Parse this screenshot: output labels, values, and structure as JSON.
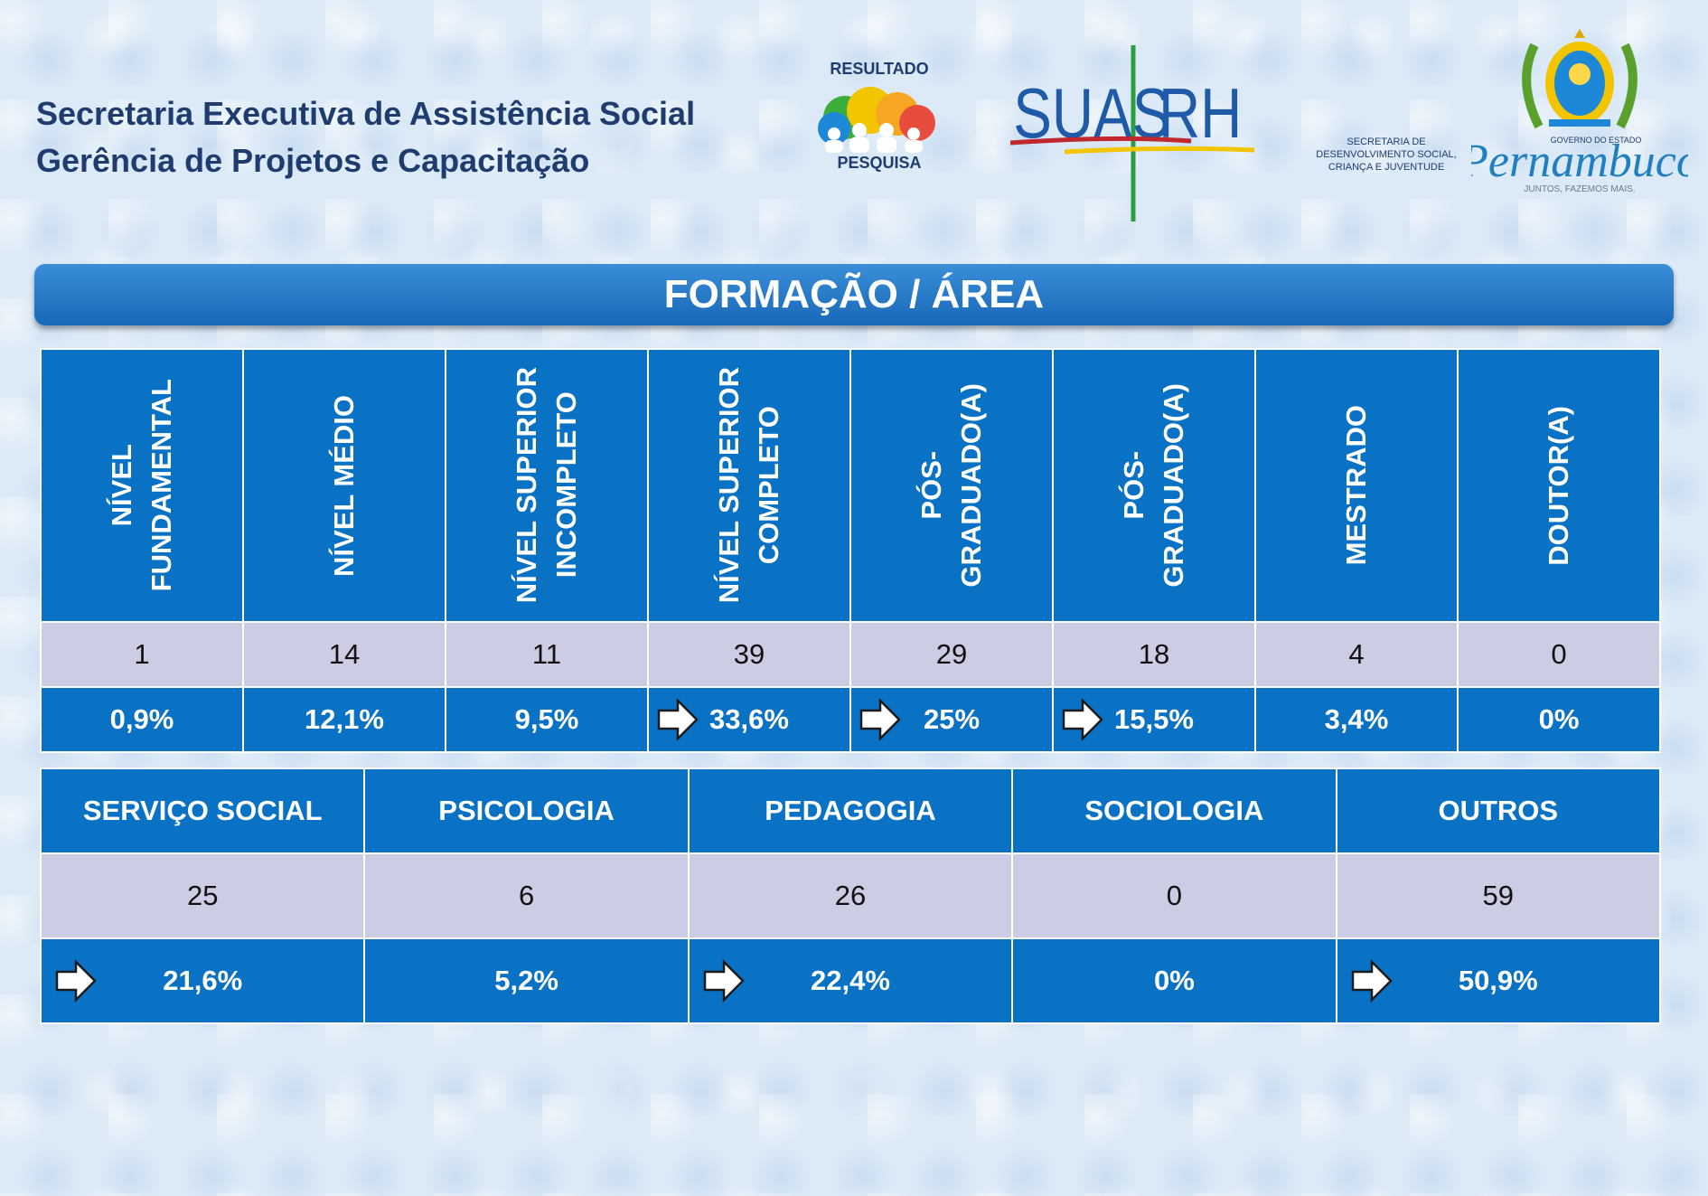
{
  "header": {
    "line1": "Secretaria Executiva de Assistência Social",
    "line2": "Gerência de Projetos e Capacitação"
  },
  "logos": {
    "resultado_top": "RESULTADO",
    "resultado_bottom": "PESQUISA",
    "suas": "SUAS",
    "rh": "RH",
    "secretaria": "SECRETARIA DE",
    "secretaria2": "DESENVOLVIMENTO SOCIAL,",
    "secretaria3": "CRIANÇA E JUVENTUDE",
    "governo": "GOVERNO DO ESTADO",
    "pernambuco": "Pernambuco",
    "slogan": "JUNTOS, FAZEMOS MAIS."
  },
  "title": "FORMAÇÃO  / ÁREA",
  "formacao": {
    "columns": [
      {
        "label": "NÍVEL FUNDAMENTAL",
        "l1": "NÍVEL",
        "l2": "FUNDAMENTAL",
        "count": "1",
        "percent": "0,9%",
        "highlight": false
      },
      {
        "label": "NÍVEL MÉDIO",
        "l1": "NÍVEL MÉDIO",
        "l2": "",
        "count": "14",
        "percent": "12,1%",
        "highlight": false
      },
      {
        "label": "NÍVEL SUPERIOR INCOMPLETO",
        "l1": "NÍVEL SUPERIOR",
        "l2": "INCOMPLETO",
        "count": "11",
        "percent": "9,5%",
        "highlight": false
      },
      {
        "label": "NÍVEL SUPERIOR COMPLETO",
        "l1": "NÍVEL SUPERIOR",
        "l2": "COMPLETO",
        "count": "39",
        "percent": "33,6%",
        "highlight": true
      },
      {
        "label": "PÓS-GRADUADO(A)",
        "l1": "PÓS-",
        "l2": "GRADUADO(A)",
        "count": "29",
        "percent": "25%",
        "highlight": true
      },
      {
        "label": "PÓS-GRADUADO(A)",
        "l1": "PÓS-",
        "l2": "GRADUADO(A)",
        "count": "18",
        "percent": "15,5%",
        "highlight": true
      },
      {
        "label": "MESTRADO",
        "l1": "MESTRADO",
        "l2": "",
        "count": "4",
        "percent": "3,4%",
        "highlight": false
      },
      {
        "label": "DOUTOR(A)",
        "l1": "DOUTOR(A)",
        "l2": "",
        "count": "0",
        "percent": "0%",
        "highlight": false
      }
    ]
  },
  "area": {
    "columns": [
      {
        "label": "SERVIÇO SOCIAL",
        "count": "25",
        "percent": "21,6%",
        "highlight": true
      },
      {
        "label": "PSICOLOGIA",
        "count": "6",
        "percent": "5,2%",
        "highlight": false
      },
      {
        "label": "PEDAGOGIA",
        "count": "26",
        "percent": "22,4%",
        "highlight": true
      },
      {
        "label": "SOCIOLOGIA",
        "count": "0",
        "percent": "0%",
        "highlight": false
      },
      {
        "label": "OUTROS",
        "count": "59",
        "percent": "50,9%",
        "highlight": true
      }
    ]
  },
  "colors": {
    "header_blue": "#0a72c4",
    "count_row": "#cccce4",
    "title_text": "#1f3c6e"
  }
}
